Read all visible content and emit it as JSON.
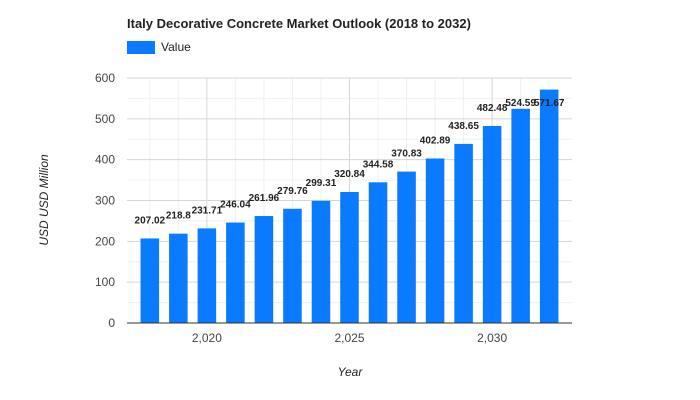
{
  "chart_data": {
    "type": "bar",
    "title": "Italy Decorative Concrete Market Outlook (2018 to 2032)",
    "xlabel": "Year",
    "ylabel": "USD USD Million",
    "legend": {
      "label": "Value",
      "placement": "top-left"
    },
    "bar_color": "#0a7bff",
    "categories": [
      2018,
      2019,
      2020,
      2021,
      2022,
      2023,
      2024,
      2025,
      2026,
      2027,
      2028,
      2029,
      2030,
      2031,
      2032
    ],
    "values": [
      207.02,
      218.8,
      231.71,
      246.04,
      261.96,
      279.76,
      299.31,
      320.84,
      344.58,
      370.83,
      402.89,
      438.65,
      482.48,
      524.59,
      571.67
    ],
    "data_labels": [
      "207.02",
      "218.8",
      "231.71",
      "246.04",
      "261.96",
      "279.76",
      "299.31",
      "320.84",
      "344.58",
      "370.83",
      "402.89",
      "438.65",
      "482.48",
      "524.59",
      "571.67"
    ],
    "ylim": [
      0,
      600
    ],
    "xlim": [
      2017.2,
      2032.8
    ],
    "y_ticks": [
      0,
      100,
      200,
      300,
      400,
      500,
      600
    ],
    "y_tick_labels": [
      "0",
      "100",
      "200",
      "300",
      "400",
      "500",
      "600"
    ],
    "x_ticks": [
      2020,
      2025,
      2030
    ],
    "x_tick_labels": [
      "2,020",
      "2,025",
      "2,030"
    ],
    "grid": true
  }
}
